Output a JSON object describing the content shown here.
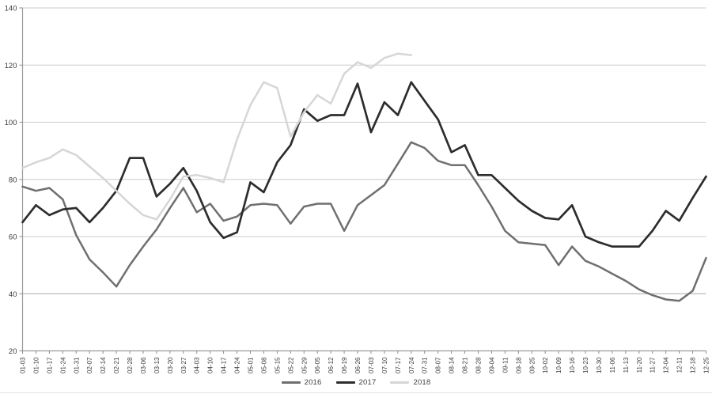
{
  "chart_data": {
    "type": "line",
    "title": "",
    "xlabel": "",
    "ylabel": "",
    "ylim": [
      20,
      140
    ],
    "yticks": [
      20,
      40,
      60,
      80,
      100,
      120,
      140
    ],
    "grid": "horizontal",
    "legend_position": "bottom-center",
    "categories": [
      "01-03",
      "01-10",
      "01-17",
      "01-24",
      "01-31",
      "02-07",
      "02-14",
      "02-21",
      "02-28",
      "03-06",
      "03-13",
      "03-20",
      "03-27",
      "04-03",
      "04-10",
      "04-17",
      "04-24",
      "05-01",
      "05-08",
      "05-15",
      "05-22",
      "05-29",
      "06-05",
      "06-12",
      "06-19",
      "06-26",
      "07-03",
      "07-10",
      "07-17",
      "07-24",
      "07-31",
      "08-07",
      "08-14",
      "08-21",
      "08-28",
      "09-04",
      "09-11",
      "09-18",
      "09-25",
      "10-02",
      "10-09",
      "10-16",
      "10-23",
      "10-30",
      "11-06",
      "11-13",
      "11-20",
      "11-27",
      "12-04",
      "12-11",
      "12-18",
      "12-25"
    ],
    "series": [
      {
        "name": "2016",
        "color": "#6f6f6f",
        "stroke_width": 2.5,
        "values": [
          77.5,
          76,
          77,
          73,
          60.5,
          52,
          47.5,
          42.5,
          50,
          56.5,
          62.5,
          70,
          77,
          68.5,
          71.5,
          65.5,
          67,
          71,
          71.5,
          71,
          64.5,
          70.5,
          71.5,
          71.5,
          62,
          71,
          74.5,
          78,
          85.5,
          93,
          91,
          86.5,
          85,
          85,
          78,
          70.5,
          62,
          58,
          57.5,
          57,
          50,
          56.5,
          51.5,
          49.5,
          47,
          44.5,
          41.5,
          39.5,
          38,
          37.5,
          41,
          52.5
        ]
      },
      {
        "name": "2017",
        "color": "#2d2d2d",
        "stroke_width": 2.7,
        "values": [
          65,
          71,
          67.5,
          69.5,
          70,
          65,
          70,
          76,
          87.5,
          87.5,
          74,
          78.5,
          84,
          76,
          65,
          59.5,
          61.5,
          79,
          75.5,
          86,
          92,
          104.5,
          100.5,
          102.5,
          102.5,
          113.5,
          96.5,
          107,
          102.5,
          114,
          107.5,
          101,
          89.5,
          92,
          81.5,
          81.5,
          77,
          72.5,
          69,
          66.5,
          66,
          71,
          60,
          58,
          56.5,
          56.5,
          56.5,
          62,
          69,
          65.5,
          73.5,
          81
        ]
      },
      {
        "name": "2018",
        "color": "#d6d6d6",
        "stroke_width": 2.5,
        "values": [
          84,
          86,
          87.5,
          90.5,
          88.5,
          84.5,
          80.5,
          76,
          71.5,
          67.5,
          66,
          73,
          81,
          81.5,
          80.5,
          79,
          94,
          106,
          114,
          112,
          95,
          103.5,
          109.5,
          106.5,
          117,
          121,
          119,
          122.5,
          124,
          123.5
        ]
      }
    ]
  },
  "legend": {
    "items": [
      {
        "label": "2016",
        "color": "#6f6f6f"
      },
      {
        "label": "2017",
        "color": "#2d2d2d"
      },
      {
        "label": "2018",
        "color": "#d6d6d6"
      }
    ]
  },
  "style": {
    "grid_color": "#cbcbcb",
    "grid_color_dark": "#a9a9a9",
    "axis_color": "#9b9b9b",
    "tick_color": "#8a8a8a",
    "label_color": "#3c3c3c",
    "background": "#ffffff"
  }
}
